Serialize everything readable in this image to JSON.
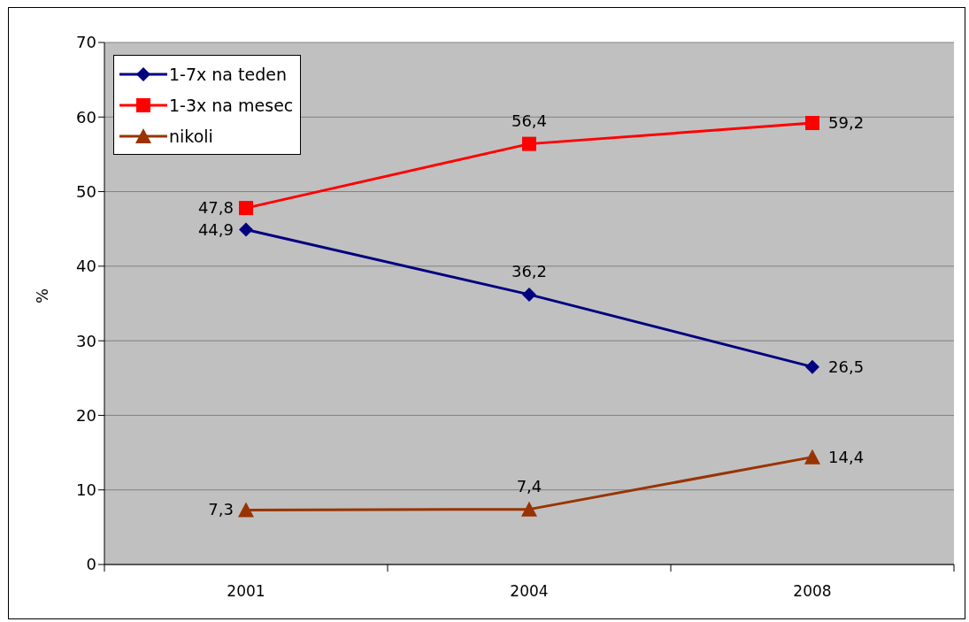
{
  "chart_data": {
    "type": "line",
    "ylabel": "%",
    "categories": [
      "2001",
      "2004",
      "2008"
    ],
    "series": [
      {
        "name": "1-7x na teden",
        "color": "#000080",
        "marker": "diamond",
        "values": [
          44.9,
          36.2,
          26.5
        ],
        "value_labels": [
          "44,9",
          "36,2",
          "26,5"
        ]
      },
      {
        "name": "1-3x na mesec",
        "color": "#ff0000",
        "marker": "square",
        "values": [
          47.8,
          56.4,
          59.2
        ],
        "value_labels": [
          "47,8",
          "56,4",
          "59,2"
        ]
      },
      {
        "name": "nikoli",
        "color": "#993300",
        "marker": "triangle",
        "values": [
          7.3,
          7.4,
          14.4
        ],
        "value_labels": [
          "7,3",
          "7,4",
          "14,4"
        ]
      }
    ],
    "ylim": [
      0,
      70
    ],
    "yticks": [
      0,
      10,
      20,
      30,
      40,
      50,
      60,
      70
    ],
    "grid": "y",
    "legend": "top left"
  }
}
